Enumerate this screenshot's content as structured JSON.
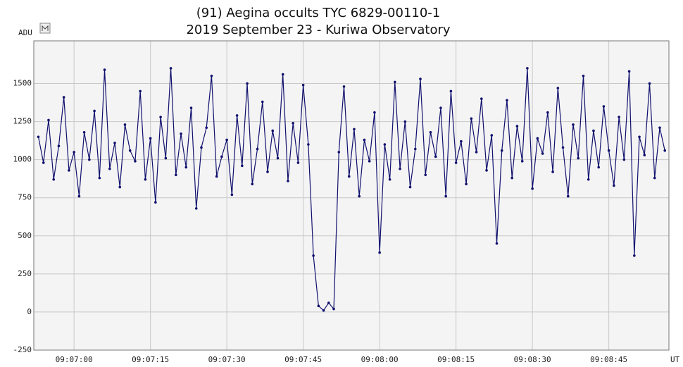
{
  "chart_data": {
    "type": "line",
    "title": "(91) Aegina occults TYC 6829-00110-1",
    "subtitle": "2019 September 23 - Kuriwa Observatory",
    "y_label": "ADU",
    "x_label": "UT",
    "x": [
      32813,
      32814,
      32815,
      32816,
      32817,
      32818,
      32819,
      32820,
      32821,
      32822,
      32823,
      32824,
      32825,
      32826,
      32827,
      32828,
      32829,
      32830,
      32831,
      32832,
      32833,
      32834,
      32835,
      32836,
      32837,
      32838,
      32839,
      32840,
      32841,
      32842,
      32843,
      32844,
      32845,
      32846,
      32847,
      32848,
      32849,
      32850,
      32851,
      32852,
      32853,
      32854,
      32855,
      32856,
      32857,
      32858,
      32859,
      32860,
      32861,
      32862,
      32863,
      32864,
      32865,
      32866,
      32867,
      32868,
      32869,
      32870,
      32871,
      32872,
      32873,
      32874,
      32875,
      32876,
      32877,
      32878,
      32879,
      32880,
      32881,
      32882,
      32883,
      32884,
      32885,
      32886,
      32887,
      32888,
      32889,
      32890,
      32891,
      32892,
      32893,
      32894,
      32895,
      32896,
      32897,
      32898,
      32899,
      32900,
      32901,
      32902,
      32903,
      32904,
      32905,
      32906,
      32907,
      32908,
      32909,
      32910,
      32911,
      32912,
      32913,
      32914,
      32915,
      32916,
      32917,
      32918,
      32919,
      32920,
      32921,
      32922,
      32923,
      32924,
      32925,
      32926,
      32927,
      32928,
      32929,
      32930,
      32931,
      32932,
      32933,
      32934,
      32935,
      32936
    ],
    "series": [
      {
        "color": "#10106e",
        "values": [
          1150,
          980,
          1260,
          870,
          1090,
          1410,
          930,
          1050,
          760,
          1180,
          1000,
          1320,
          880,
          1590,
          940,
          1110,
          820,
          1230,
          1060,
          990,
          1450,
          870,
          1140,
          720,
          1280,
          1010,
          1600,
          900,
          1170,
          950,
          1340,
          680,
          1080,
          1210,
          1550,
          890,
          1020,
          1130,
          770,
          1290,
          960,
          1500,
          840,
          1070,
          1380,
          920,
          1190,
          1010,
          1560,
          860,
          1240,
          980,
          1490,
          1100,
          370,
          40,
          10,
          60,
          20,
          1050,
          1480,
          890,
          1200,
          760,
          1130,
          990,
          1310,
          390,
          1100,
          870,
          1510,
          940,
          1250,
          820,
          1070,
          1530,
          900,
          1180,
          1020,
          1340,
          760,
          1450,
          980,
          1120,
          840,
          1270,
          1050,
          1400,
          930,
          1160,
          450,
          1060,
          1390,
          880,
          1220,
          990,
          1600,
          810,
          1140,
          1040,
          1310,
          920,
          1470,
          1080,
          760,
          1230,
          1010,
          1550,
          870,
          1190,
          950,
          1350,
          1060,
          830,
          1280,
          1000,
          1580,
          370,
          1150,
          1030,
          1500,
          880,
          1210,
          1060
        ]
      }
    ],
    "xlim": [
      32812.1,
      32936.8
    ],
    "xticks": [
      {
        "value": 32820,
        "label": "09:07:00"
      },
      {
        "value": 32835,
        "label": "09:07:15"
      },
      {
        "value": 32850,
        "label": "09:07:30"
      },
      {
        "value": 32865,
        "label": "09:07:45"
      },
      {
        "value": 32880,
        "label": "09:08:00"
      },
      {
        "value": 32895,
        "label": "09:08:15"
      },
      {
        "value": 32910,
        "label": "09:08:30"
      },
      {
        "value": 32925,
        "label": "09:08:45"
      }
    ],
    "ylim": [
      -250,
      1780
    ],
    "yticks": [
      -250,
      0,
      250,
      500,
      750,
      1000,
      1250,
      1500
    ],
    "grid": true
  }
}
